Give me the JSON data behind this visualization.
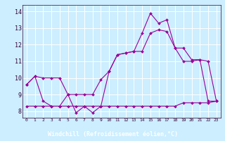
{
  "background_color": "#cceeff",
  "grid_color": "#ffffff",
  "line_color": "#990099",
  "xlabel": "Windchill (Refroidissement éolien,°C)",
  "xlabel_color": "#ffffff",
  "xlabel_bg": "#7700aa",
  "ylabel_ticks": [
    8,
    9,
    10,
    11,
    12,
    13,
    14
  ],
  "xlim": [
    -0.5,
    23.5
  ],
  "ylim": [
    7.6,
    14.4
  ],
  "line1_x": [
    0,
    1,
    2,
    3,
    4,
    5,
    6,
    7,
    8,
    9,
    10,
    11,
    12,
    13,
    14,
    15,
    16,
    17,
    18,
    19,
    20,
    21,
    22,
    23
  ],
  "line1_y": [
    9.6,
    10.1,
    10.0,
    10.0,
    10.0,
    9.0,
    9.0,
    9.0,
    9.0,
    9.9,
    10.4,
    11.4,
    11.5,
    11.6,
    11.6,
    12.7,
    12.9,
    12.8,
    11.8,
    11.8,
    11.1,
    11.1,
    11.0,
    8.6
  ],
  "line2_x": [
    0,
    1,
    2,
    3,
    4,
    5,
    6,
    7,
    8,
    9,
    10,
    11,
    12,
    13,
    14,
    15,
    16,
    17,
    18,
    19,
    20,
    21,
    22,
    23
  ],
  "line2_y": [
    9.6,
    10.1,
    8.6,
    8.3,
    8.3,
    9.0,
    7.9,
    8.3,
    7.9,
    8.3,
    10.4,
    11.4,
    11.5,
    11.6,
    12.7,
    13.9,
    13.3,
    13.5,
    11.8,
    11.0,
    11.0,
    11.1,
    8.6,
    8.6
  ],
  "line3_x": [
    0,
    1,
    2,
    3,
    4,
    5,
    6,
    7,
    8,
    9,
    10,
    11,
    12,
    13,
    14,
    15,
    16,
    17,
    18,
    19,
    20,
    21,
    22,
    23
  ],
  "line3_y": [
    8.3,
    8.3,
    8.3,
    8.3,
    8.3,
    8.3,
    8.3,
    8.3,
    8.3,
    8.3,
    8.3,
    8.3,
    8.3,
    8.3,
    8.3,
    8.3,
    8.3,
    8.3,
    8.3,
    8.5,
    8.5,
    8.5,
    8.5,
    8.6
  ]
}
